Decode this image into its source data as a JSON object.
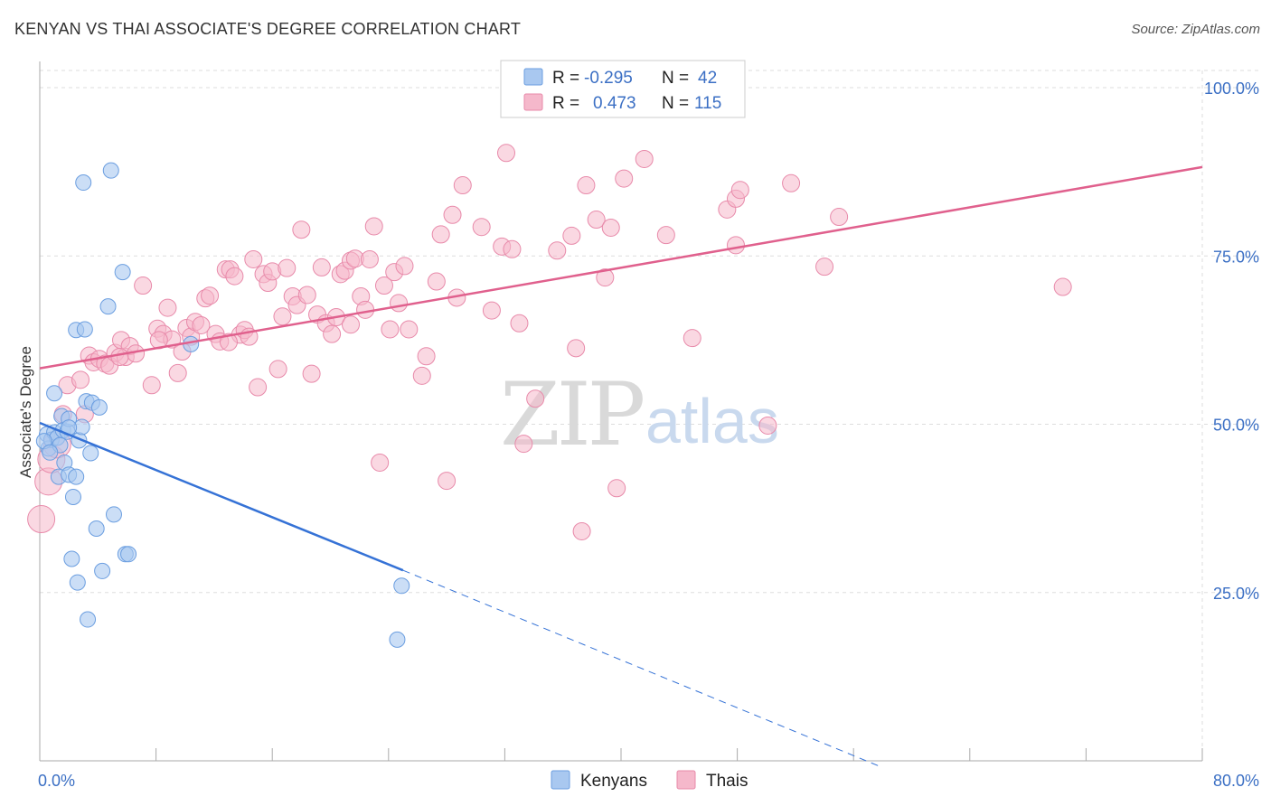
{
  "title": "KENYAN VS THAI ASSOCIATE'S DEGREE CORRELATION CHART",
  "source": "Source: ZipAtlas.com",
  "watermark": {
    "zip": "ZIP",
    "atlas": "atlas"
  },
  "colors": {
    "kenyan_fill": "#a9c8f0",
    "kenyan_stroke": "#6b9ee0",
    "kenyan_line": "#3572d6",
    "thai_fill": "#f5b8cb",
    "thai_stroke": "#e88aaa",
    "thai_line": "#e0608d",
    "grid": "#dddddd",
    "tick_text": "#3b6fc4"
  },
  "legend": {
    "row1": {
      "r_label": "R =",
      "r_value": "-0.295",
      "n_label": "N =",
      "n_value": "42"
    },
    "row2": {
      "r_label": "R =",
      "r_value": "0.473",
      "n_label": "N =",
      "n_value": "115"
    }
  },
  "bottom_legend": {
    "kenyans": "Kenyans",
    "thais": "Thais"
  },
  "chart_data": {
    "type": "scatter",
    "xlabel": "",
    "ylabel": "Associate's Degree",
    "xlim": [
      0,
      80
    ],
    "ylim": [
      0,
      100
    ],
    "x_tick_labels": [
      "0.0%",
      "80.0%"
    ],
    "y_ticks": [
      25,
      50,
      75,
      100
    ],
    "y_tick_labels": [
      "25.0%",
      "50.0%",
      "75.0%",
      "100.0%"
    ],
    "grid": true,
    "legend_position": "top-center",
    "series": [
      {
        "name": "Kenyans",
        "r": -0.295,
        "n": 42,
        "trend": {
          "x0": 0,
          "y0": 50.2,
          "x1": 25,
          "y1": 28.3,
          "dashed_to_x": 58,
          "dashed_to_y": -1
        },
        "points": [
          [
            0.5,
            48.5
          ],
          [
            0.6,
            46.4
          ],
          [
            0.8,
            47.7
          ],
          [
            1.0,
            48.8
          ],
          [
            1.2,
            48.0
          ],
          [
            1.3,
            42.2
          ],
          [
            1.4,
            46.9
          ],
          [
            1.5,
            51.2
          ],
          [
            1.6,
            49.1
          ],
          [
            1.7,
            44.3
          ],
          [
            1.9,
            48.9
          ],
          [
            2.0,
            50.8
          ],
          [
            2.0,
            42.5
          ],
          [
            2.2,
            30.0
          ],
          [
            2.3,
            39.2
          ],
          [
            2.5,
            42.2
          ],
          [
            2.5,
            64.0
          ],
          [
            2.6,
            26.5
          ],
          [
            2.7,
            47.6
          ],
          [
            2.9,
            49.6
          ],
          [
            3.1,
            64.1
          ],
          [
            3.2,
            53.4
          ],
          [
            3.3,
            21.0
          ],
          [
            3.5,
            45.7
          ],
          [
            3.6,
            53.2
          ],
          [
            3.9,
            34.5
          ],
          [
            4.1,
            52.5
          ],
          [
            4.3,
            28.2
          ],
          [
            4.7,
            67.5
          ],
          [
            4.9,
            87.7
          ],
          [
            5.1,
            36.6
          ],
          [
            5.7,
            72.6
          ],
          [
            5.9,
            30.7
          ],
          [
            6.1,
            30.7
          ],
          [
            10.4,
            61.9
          ],
          [
            24.9,
            26.0
          ],
          [
            24.6,
            18.0
          ],
          [
            3.0,
            85.9
          ],
          [
            1.0,
            54.6
          ],
          [
            0.3,
            47.5
          ],
          [
            2.0,
            49.5
          ],
          [
            0.7,
            45.8
          ]
        ]
      },
      {
        "name": "Thais",
        "r": 0.473,
        "n": 115,
        "trend": {
          "x0": 0,
          "y0": 58.3,
          "x1": 80,
          "y1": 88.2
        },
        "points": [
          [
            0.1,
            35.9
          ],
          [
            0.6,
            41.5
          ],
          [
            0.8,
            44.8
          ],
          [
            1.2,
            47.0
          ],
          [
            1.6,
            51.5
          ],
          [
            1.9,
            55.8
          ],
          [
            2.8,
            56.6
          ],
          [
            3.1,
            51.5
          ],
          [
            3.4,
            60.2
          ],
          [
            3.7,
            59.2
          ],
          [
            4.1,
            59.7
          ],
          [
            4.5,
            59.0
          ],
          [
            4.8,
            58.7
          ],
          [
            5.2,
            60.6
          ],
          [
            5.6,
            62.5
          ],
          [
            5.9,
            60.0
          ],
          [
            6.2,
            61.6
          ],
          [
            6.6,
            60.5
          ],
          [
            7.1,
            70.6
          ],
          [
            7.7,
            55.8
          ],
          [
            8.1,
            64.2
          ],
          [
            8.5,
            63.4
          ],
          [
            8.8,
            67.3
          ],
          [
            9.1,
            62.6
          ],
          [
            9.5,
            57.6
          ],
          [
            9.8,
            60.8
          ],
          [
            10.1,
            64.3
          ],
          [
            10.4,
            63.0
          ],
          [
            10.7,
            65.2
          ],
          [
            11.1,
            64.7
          ],
          [
            11.4,
            68.7
          ],
          [
            11.7,
            69.1
          ],
          [
            12.1,
            63.4
          ],
          [
            12.4,
            62.3
          ],
          [
            12.8,
            73.0
          ],
          [
            13.1,
            73.0
          ],
          [
            13.4,
            72.0
          ],
          [
            13.8,
            63.3
          ],
          [
            14.1,
            64.0
          ],
          [
            14.4,
            63.0
          ],
          [
            14.7,
            74.5
          ],
          [
            15.0,
            55.5
          ],
          [
            15.4,
            72.3
          ],
          [
            15.7,
            71.0
          ],
          [
            16.0,
            72.7
          ],
          [
            16.4,
            58.2
          ],
          [
            16.7,
            66.0
          ],
          [
            17.0,
            73.2
          ],
          [
            17.4,
            69.0
          ],
          [
            17.7,
            67.7
          ],
          [
            18.0,
            78.9
          ],
          [
            18.4,
            69.2
          ],
          [
            18.7,
            57.5
          ],
          [
            19.1,
            66.3
          ],
          [
            19.4,
            73.3
          ],
          [
            19.7,
            65.0
          ],
          [
            20.1,
            63.4
          ],
          [
            20.4,
            65.9
          ],
          [
            20.7,
            72.3
          ],
          [
            21.0,
            72.8
          ],
          [
            21.4,
            74.3
          ],
          [
            21.7,
            74.6
          ],
          [
            22.1,
            69.0
          ],
          [
            22.4,
            67.0
          ],
          [
            22.7,
            74.5
          ],
          [
            23.0,
            79.4
          ],
          [
            23.4,
            44.3
          ],
          [
            23.7,
            70.6
          ],
          [
            24.1,
            64.1
          ],
          [
            24.4,
            72.6
          ],
          [
            24.7,
            68.0
          ],
          [
            25.1,
            73.5
          ],
          [
            25.4,
            64.1
          ],
          [
            26.3,
            57.2
          ],
          [
            26.6,
            60.1
          ],
          [
            27.3,
            71.2
          ],
          [
            27.6,
            78.2
          ],
          [
            28.0,
            41.6
          ],
          [
            28.4,
            81.1
          ],
          [
            28.7,
            68.8
          ],
          [
            29.1,
            85.5
          ],
          [
            30.4,
            79.3
          ],
          [
            31.1,
            66.9
          ],
          [
            31.8,
            76.4
          ],
          [
            32.1,
            90.3
          ],
          [
            32.5,
            76.0
          ],
          [
            33.0,
            65.0
          ],
          [
            33.3,
            47.1
          ],
          [
            34.1,
            53.8
          ],
          [
            35.6,
            75.8
          ],
          [
            36.6,
            78.0
          ],
          [
            36.9,
            61.3
          ],
          [
            37.3,
            34.1
          ],
          [
            37.6,
            85.5
          ],
          [
            38.3,
            80.4
          ],
          [
            39.3,
            79.2
          ],
          [
            38.9,
            71.8
          ],
          [
            39.7,
            40.5
          ],
          [
            40.2,
            86.5
          ],
          [
            41.6,
            89.4
          ],
          [
            43.1,
            78.1
          ],
          [
            44.9,
            62.8
          ],
          [
            47.3,
            81.9
          ],
          [
            47.9,
            76.6
          ],
          [
            47.9,
            83.5
          ],
          [
            48.2,
            84.8
          ],
          [
            50.1,
            49.8
          ],
          [
            51.7,
            85.8
          ],
          [
            54.0,
            73.4
          ],
          [
            55.0,
            80.8
          ],
          [
            70.4,
            70.4
          ],
          [
            8.2,
            62.5
          ],
          [
            13.0,
            62.2
          ],
          [
            21.4,
            64.8
          ],
          [
            5.5,
            60.0
          ]
        ]
      }
    ]
  }
}
